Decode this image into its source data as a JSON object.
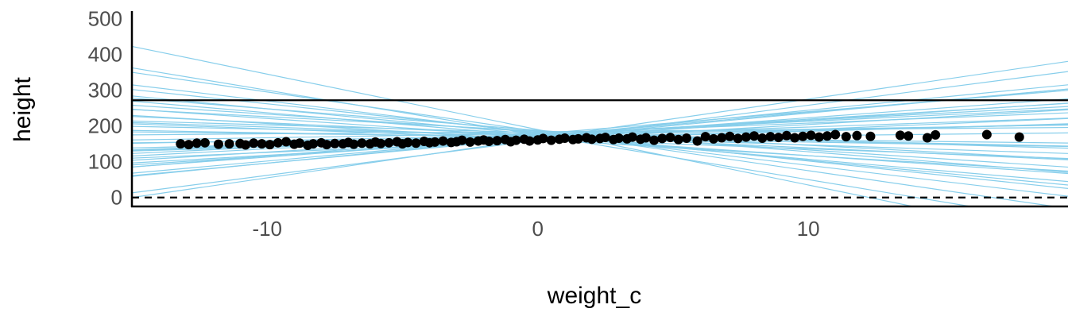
{
  "chart_data": {
    "type": "scatter",
    "title": "",
    "xlabel": "weight_c",
    "ylabel": "height",
    "xlim": [
      -15,
      19.6
    ],
    "ylim": [
      -25,
      530
    ],
    "x_ticks": [
      -10,
      0,
      10
    ],
    "x_tick_labels": [
      "-10",
      "0",
      "10"
    ],
    "y_ticks": [
      0,
      100,
      200,
      300,
      400,
      500
    ],
    "y_tick_labels": [
      "0",
      "100",
      "200",
      "300",
      "400",
      "500"
    ],
    "grid": false,
    "legend": "none",
    "reference_lines": [
      {
        "y": 272,
        "style": "solid"
      },
      {
        "y": 0,
        "style": "dashed"
      }
    ],
    "colors": {
      "prior_lines": "#87CEEB",
      "points": "#000000",
      "reference": "#000000",
      "axis": "#000000"
    },
    "prior_lines": [
      {
        "intercept": 190,
        "slope": -15.5
      },
      {
        "intercept": 175,
        "slope": -12.5
      },
      {
        "intercept": 165,
        "slope": 11.0
      },
      {
        "intercept": 170,
        "slope": 7.4
      },
      {
        "intercept": 180,
        "slope": -9.0
      },
      {
        "intercept": 160,
        "slope": 9.8
      },
      {
        "intercept": 178,
        "slope": 6.2
      },
      {
        "intercept": 172,
        "slope": -6.5
      },
      {
        "intercept": 185,
        "slope": -11.0
      },
      {
        "intercept": 168,
        "slope": 5.5
      },
      {
        "intercept": 162,
        "slope": -4.5
      },
      {
        "intercept": 176,
        "slope": 4.0
      },
      {
        "intercept": 170,
        "slope": 6.8
      },
      {
        "intercept": 182,
        "slope": -8.0
      },
      {
        "intercept": 166,
        "slope": 5.0
      },
      {
        "intercept": 174,
        "slope": -3.5
      },
      {
        "intercept": 158,
        "slope": 3.2
      },
      {
        "intercept": 188,
        "slope": -6.0
      },
      {
        "intercept": 171,
        "slope": 2.6
      },
      {
        "intercept": 164,
        "slope": -2.8
      },
      {
        "intercept": 177,
        "slope": 3.6
      },
      {
        "intercept": 169,
        "slope": -5.2
      },
      {
        "intercept": 173,
        "slope": 4.6
      },
      {
        "intercept": 181,
        "slope": -2.2
      },
      {
        "intercept": 167,
        "slope": 1.9
      },
      {
        "intercept": 175,
        "slope": -1.6
      },
      {
        "intercept": 163,
        "slope": 2.2
      },
      {
        "intercept": 179,
        "slope": 1.2
      },
      {
        "intercept": 170,
        "slope": -0.9
      },
      {
        "intercept": 186,
        "slope": -4.0
      },
      {
        "intercept": 161,
        "slope": 4.3
      },
      {
        "intercept": 184,
        "slope": 0.6
      },
      {
        "intercept": 176,
        "slope": -7.2
      },
      {
        "intercept": 166,
        "slope": 7.0
      },
      {
        "intercept": 172,
        "slope": -2.5
      },
      {
        "intercept": 178,
        "slope": 3.0
      },
      {
        "intercept": 168,
        "slope": -1.3
      },
      {
        "intercept": 183,
        "slope": -5.0
      },
      {
        "intercept": 165,
        "slope": 0.8
      },
      {
        "intercept": 174,
        "slope": 1.5
      }
    ],
    "points": [
      {
        "x": -13.2,
        "y": 150
      },
      {
        "x": -12.9,
        "y": 148
      },
      {
        "x": -12.6,
        "y": 152
      },
      {
        "x": -12.3,
        "y": 153
      },
      {
        "x": -11.8,
        "y": 149
      },
      {
        "x": -11.4,
        "y": 150
      },
      {
        "x": -11.0,
        "y": 151
      },
      {
        "x": -10.8,
        "y": 147
      },
      {
        "x": -10.5,
        "y": 152
      },
      {
        "x": -10.2,
        "y": 150
      },
      {
        "x": -9.9,
        "y": 148
      },
      {
        "x": -9.6,
        "y": 153
      },
      {
        "x": -9.3,
        "y": 156
      },
      {
        "x": -9.0,
        "y": 149
      },
      {
        "x": -8.8,
        "y": 152
      },
      {
        "x": -8.5,
        "y": 146
      },
      {
        "x": -8.3,
        "y": 150
      },
      {
        "x": -8.0,
        "y": 153
      },
      {
        "x": -7.8,
        "y": 148
      },
      {
        "x": -7.5,
        "y": 151
      },
      {
        "x": -7.2,
        "y": 150
      },
      {
        "x": -7.0,
        "y": 154
      },
      {
        "x": -6.8,
        "y": 149
      },
      {
        "x": -6.5,
        "y": 152
      },
      {
        "x": -6.2,
        "y": 150
      },
      {
        "x": -6.0,
        "y": 155
      },
      {
        "x": -5.8,
        "y": 151
      },
      {
        "x": -5.5,
        "y": 153
      },
      {
        "x": -5.2,
        "y": 156
      },
      {
        "x": -5.0,
        "y": 150
      },
      {
        "x": -4.8,
        "y": 154
      },
      {
        "x": -4.5,
        "y": 152
      },
      {
        "x": -4.2,
        "y": 157
      },
      {
        "x": -4.0,
        "y": 153
      },
      {
        "x": -3.8,
        "y": 155
      },
      {
        "x": -3.5,
        "y": 158
      },
      {
        "x": -3.2,
        "y": 154
      },
      {
        "x": -3.0,
        "y": 156
      },
      {
        "x": -2.8,
        "y": 160
      },
      {
        "x": -2.5,
        "y": 155
      },
      {
        "x": -2.2,
        "y": 158
      },
      {
        "x": -2.0,
        "y": 161
      },
      {
        "x": -1.8,
        "y": 157
      },
      {
        "x": -1.5,
        "y": 159
      },
      {
        "x": -1.2,
        "y": 162
      },
      {
        "x": -1.0,
        "y": 156
      },
      {
        "x": -0.8,
        "y": 160
      },
      {
        "x": -0.5,
        "y": 163
      },
      {
        "x": -0.3,
        "y": 158
      },
      {
        "x": 0.0,
        "y": 161
      },
      {
        "x": 0.2,
        "y": 165
      },
      {
        "x": 0.5,
        "y": 160
      },
      {
        "x": 0.8,
        "y": 163
      },
      {
        "x": 1.0,
        "y": 166
      },
      {
        "x": 1.3,
        "y": 162
      },
      {
        "x": 1.5,
        "y": 164
      },
      {
        "x": 1.8,
        "y": 167
      },
      {
        "x": 2.0,
        "y": 163
      },
      {
        "x": 2.3,
        "y": 165
      },
      {
        "x": 2.5,
        "y": 168
      },
      {
        "x": 2.8,
        "y": 162
      },
      {
        "x": 3.0,
        "y": 166
      },
      {
        "x": 3.3,
        "y": 164
      },
      {
        "x": 3.5,
        "y": 169
      },
      {
        "x": 3.8,
        "y": 163
      },
      {
        "x": 4.0,
        "y": 167
      },
      {
        "x": 4.3,
        "y": 160
      },
      {
        "x": 4.6,
        "y": 165
      },
      {
        "x": 4.9,
        "y": 168
      },
      {
        "x": 5.2,
        "y": 162
      },
      {
        "x": 5.5,
        "y": 166
      },
      {
        "x": 5.9,
        "y": 158
      },
      {
        "x": 6.2,
        "y": 170
      },
      {
        "x": 6.5,
        "y": 164
      },
      {
        "x": 6.8,
        "y": 167
      },
      {
        "x": 7.1,
        "y": 171
      },
      {
        "x": 7.4,
        "y": 165
      },
      {
        "x": 7.7,
        "y": 169
      },
      {
        "x": 8.0,
        "y": 172
      },
      {
        "x": 8.3,
        "y": 166
      },
      {
        "x": 8.6,
        "y": 170
      },
      {
        "x": 8.9,
        "y": 168
      },
      {
        "x": 9.2,
        "y": 173
      },
      {
        "x": 9.5,
        "y": 167
      },
      {
        "x": 9.8,
        "y": 171
      },
      {
        "x": 10.1,
        "y": 174
      },
      {
        "x": 10.4,
        "y": 169
      },
      {
        "x": 10.7,
        "y": 172
      },
      {
        "x": 11.0,
        "y": 176
      },
      {
        "x": 11.4,
        "y": 170
      },
      {
        "x": 11.8,
        "y": 173
      },
      {
        "x": 12.3,
        "y": 171
      },
      {
        "x": 13.4,
        "y": 174
      },
      {
        "x": 13.7,
        "y": 172
      },
      {
        "x": 14.4,
        "y": 167
      },
      {
        "x": 14.7,
        "y": 175
      },
      {
        "x": 16.6,
        "y": 176
      },
      {
        "x": 17.8,
        "y": 169
      }
    ]
  }
}
